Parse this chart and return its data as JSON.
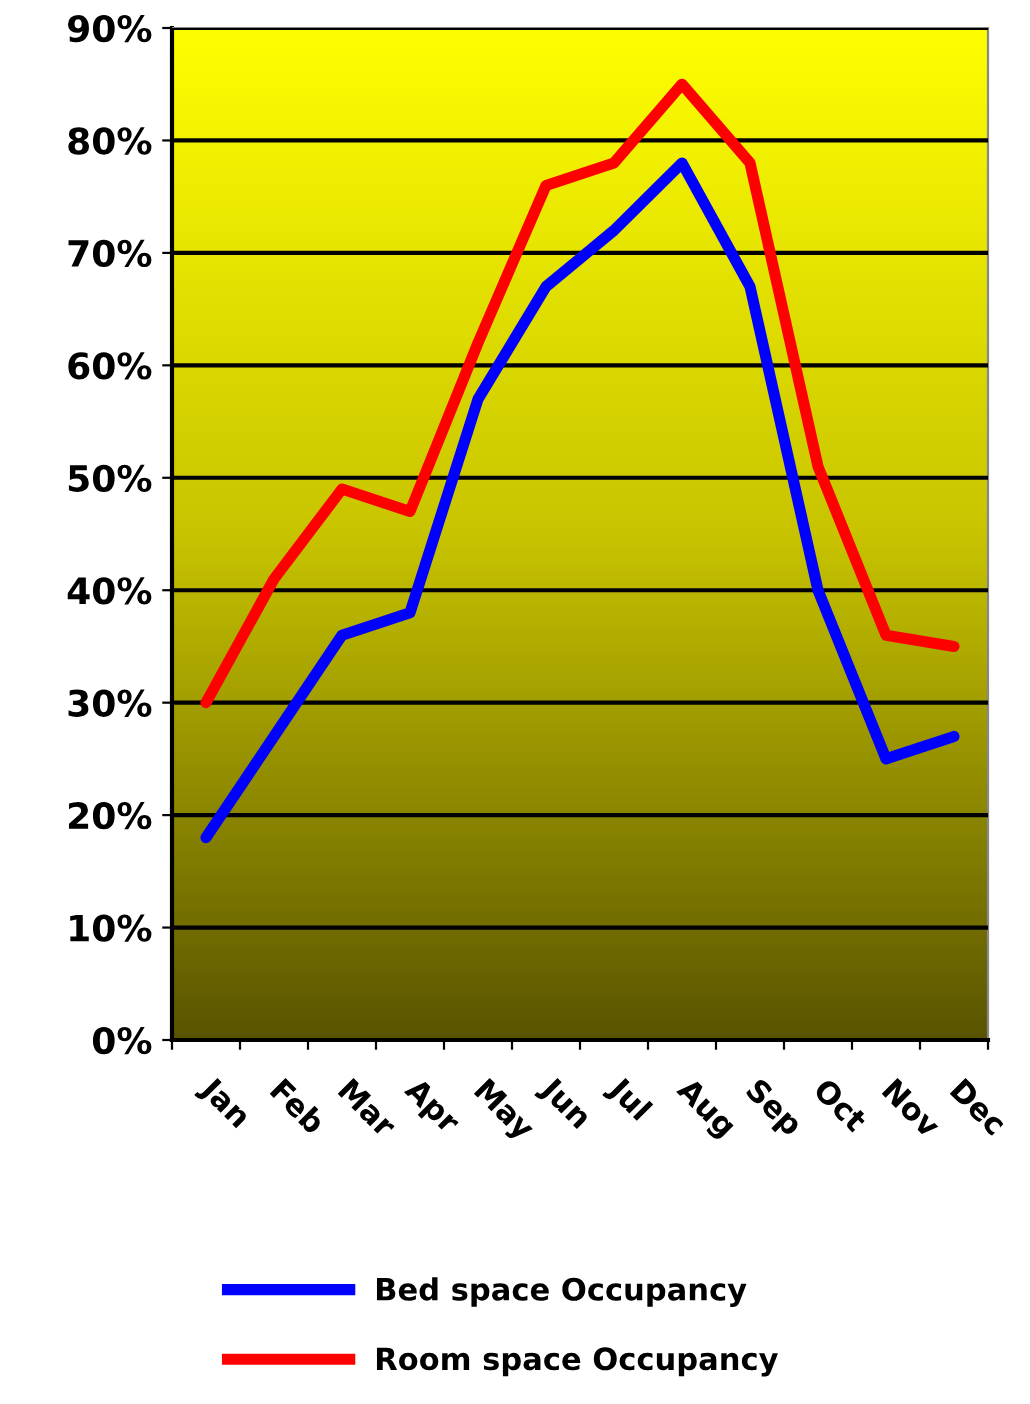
{
  "chart_data": {
    "type": "line",
    "categories": [
      "Jan",
      "Feb",
      "Mar",
      "Apr",
      "May",
      "Jun",
      "Jul",
      "Aug",
      "Sep",
      "Oct",
      "Nov",
      "Dec"
    ],
    "series": [
      {
        "name": "Bed space Occupancy",
        "color": "#0000ff",
        "values": [
          18,
          27,
          36,
          38,
          57,
          67,
          72,
          78,
          67,
          40,
          25,
          27
        ]
      },
      {
        "name": "Room space Occupancy",
        "color": "#ff0000",
        "values": [
          30,
          41,
          49,
          47,
          62,
          76,
          78,
          85,
          78,
          51,
          36,
          35
        ]
      }
    ],
    "ylim": [
      0,
      90
    ],
    "yticks": [
      {
        "value": 0,
        "label": "0%"
      },
      {
        "value": 10,
        "label": "10%"
      },
      {
        "value": 20,
        "label": "20%"
      },
      {
        "value": 30,
        "label": "30%"
      },
      {
        "value": 40,
        "label": "40%"
      },
      {
        "value": 50,
        "label": "50%"
      },
      {
        "value": 60,
        "label": "60%"
      },
      {
        "value": 70,
        "label": "70%"
      },
      {
        "value": 80,
        "label": "80%"
      },
      {
        "value": 90,
        "label": "90%"
      }
    ],
    "grid": "y",
    "legend": "bottom",
    "marker": "none",
    "line_style": "solid"
  }
}
